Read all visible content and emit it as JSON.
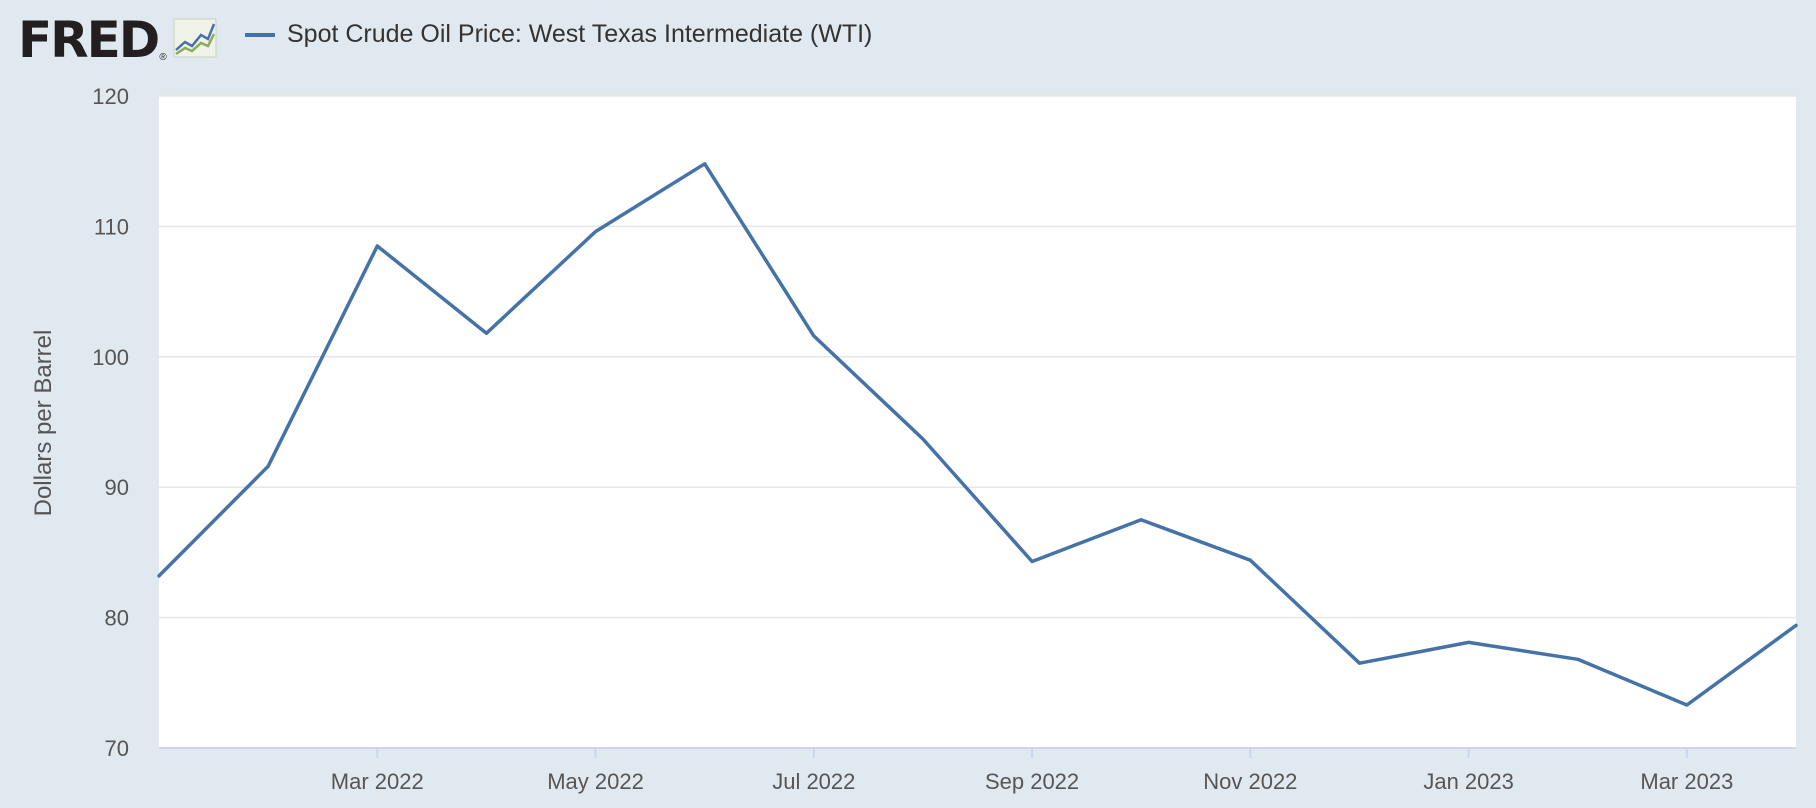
{
  "header": {
    "logo_text": "FRED",
    "logo_mark": "®",
    "logo_icon": "line-chart-icon"
  },
  "colors": {
    "background": "#e1e9f0",
    "plot_background": "#ffffff",
    "series": "#4572a7",
    "grid": "#e6e6e6"
  },
  "chart_data": {
    "type": "line",
    "title": "",
    "xlabel": "",
    "ylabel": "Dollars per Barrel",
    "ylim": [
      70,
      120
    ],
    "yticks": [
      70,
      80,
      90,
      100,
      110,
      120
    ],
    "x": [
      "2022-01",
      "2022-02",
      "2022-03",
      "2022-04",
      "2022-05",
      "2022-06",
      "2022-07",
      "2022-08",
      "2022-09",
      "2022-10",
      "2022-11",
      "2022-12",
      "2023-01",
      "2023-02",
      "2023-03",
      "2023-04"
    ],
    "xticks": [
      {
        "x": "2022-03",
        "label": "Mar 2022"
      },
      {
        "x": "2022-05",
        "label": "May 2022"
      },
      {
        "x": "2022-07",
        "label": "Jul 2022"
      },
      {
        "x": "2022-09",
        "label": "Sep 2022"
      },
      {
        "x": "2022-11",
        "label": "Nov 2022"
      },
      {
        "x": "2023-01",
        "label": "Jan 2023"
      },
      {
        "x": "2023-03",
        "label": "Mar 2023"
      }
    ],
    "series": [
      {
        "name": "Spot Crude Oil Price: West Texas Intermediate (WTI)",
        "values": [
          83.2,
          91.6,
          108.5,
          101.8,
          109.6,
          114.8,
          101.6,
          93.7,
          84.3,
          87.5,
          84.4,
          76.5,
          78.1,
          76.8,
          73.3,
          79.4
        ]
      }
    ],
    "grid": true,
    "legend": "top-left"
  }
}
